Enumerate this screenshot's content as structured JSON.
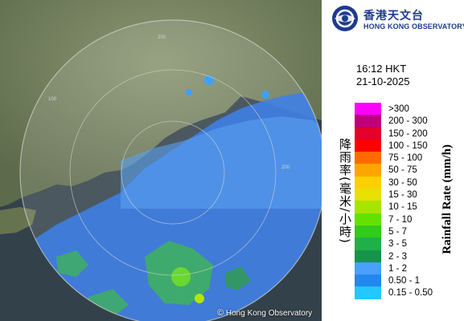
{
  "header": {
    "logo_cn": "香港天文台",
    "logo_en": "HONG KONG OBSERVATORY"
  },
  "timestamp": {
    "time": "16:12 HKT",
    "date": "21-10-2025"
  },
  "legend": {
    "title_cn": "降雨率(毫米/小時)",
    "title_en": "Rainfall Rate (mm/h)",
    "items": [
      {
        "label": ">300",
        "color": "#ff00ff"
      },
      {
        "label": "200 - 300",
        "color": "#c0007a"
      },
      {
        "label": "150 - 200",
        "color": "#e4002b"
      },
      {
        "label": "100 - 150",
        "color": "#ff0000"
      },
      {
        "label": "75 - 100",
        "color": "#ff6a00"
      },
      {
        "label": "50 - 75",
        "color": "#ffa500"
      },
      {
        "label": "30 - 50",
        "color": "#ffd000"
      },
      {
        "label": "15 - 30",
        "color": "#e8e000"
      },
      {
        "label": "10 - 15",
        "color": "#a8e400"
      },
      {
        "label": "7 - 10",
        "color": "#66e000"
      },
      {
        "label": "5 - 7",
        "color": "#2fcc1a"
      },
      {
        "label": "3 - 5",
        "color": "#20b04a"
      },
      {
        "label": "2 - 3",
        "color": "#16944a"
      },
      {
        "label": "1 - 2",
        "color": "#4aa0ff"
      },
      {
        "label": "0.50 - 1",
        "color": "#2288ee"
      },
      {
        "label": "0.15 - 0.50",
        "color": "#22c8ff"
      }
    ]
  },
  "map": {
    "copyright": "Hong Kong Observatory",
    "range_labels": [
      "200",
      "100",
      "200"
    ],
    "land_color": "#6f7f5c",
    "sea_color": "#2d3a45"
  }
}
